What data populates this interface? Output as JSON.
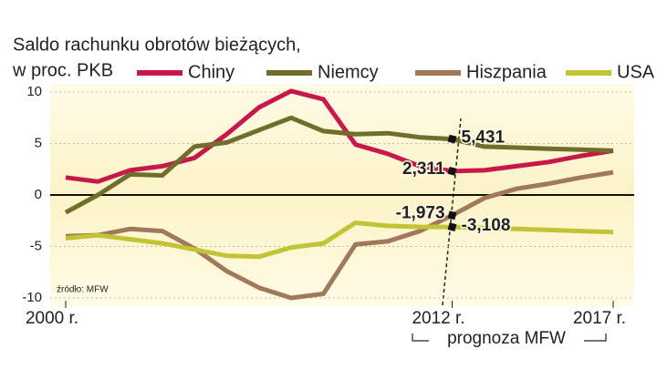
{
  "chart_data": {
    "type": "line",
    "title": [
      "Saldo rachunku obrotów bieżących,",
      "w proc. PKB"
    ],
    "source": "źródło: MFW",
    "annotation": "prognoza MFW",
    "x": [
      2000,
      2001,
      2002,
      2003,
      2004,
      2005,
      2006,
      2007,
      2008,
      2009,
      2010,
      2011,
      2012,
      2013,
      2014,
      2015,
      2016,
      2017
    ],
    "xlim": [
      2000,
      2017
    ],
    "xticks": [
      {
        "value": 2000,
        "label": "2000 r."
      },
      {
        "value": 2012,
        "label": "2012 r."
      },
      {
        "value": 2017,
        "label": "2017 r."
      }
    ],
    "ylim": [
      -10,
      10
    ],
    "yticks": [
      -10,
      -5,
      0,
      5,
      10
    ],
    "grid": true,
    "series": [
      {
        "name": "Chiny",
        "color": "#c8174a",
        "values": [
          1.7,
          1.3,
          2.4,
          2.8,
          3.6,
          5.9,
          8.5,
          10.1,
          9.3,
          4.9,
          4.0,
          2.8,
          2.311,
          2.4,
          2.8,
          3.2,
          3.8,
          4.3
        ],
        "value_labels": [
          null,
          null,
          null,
          null,
          null,
          null,
          null,
          null,
          null,
          null,
          null,
          null,
          "2,311",
          null,
          null,
          null,
          null,
          null
        ]
      },
      {
        "name": "Niemcy",
        "color": "#6f6e2a",
        "values": [
          -1.7,
          0.0,
          2.0,
          1.9,
          4.7,
          5.1,
          6.3,
          7.5,
          6.2,
          5.9,
          6.0,
          5.6,
          5.431,
          4.7,
          4.6,
          4.5,
          4.4,
          4.3
        ],
        "value_labels": [
          null,
          null,
          null,
          null,
          null,
          null,
          null,
          null,
          null,
          null,
          null,
          null,
          "5,431",
          null,
          null,
          null,
          null,
          null
        ]
      },
      {
        "name": "Hiszpania",
        "color": "#a0785a",
        "values": [
          -4.0,
          -3.9,
          -3.3,
          -3.5,
          -5.2,
          -7.4,
          -9.0,
          -10.0,
          -9.6,
          -4.8,
          -4.5,
          -3.5,
          -1.973,
          -0.3,
          0.6,
          1.1,
          1.7,
          2.2
        ],
        "value_labels": [
          null,
          null,
          null,
          null,
          null,
          null,
          null,
          null,
          null,
          null,
          null,
          null,
          "-1,973",
          null,
          null,
          null,
          null,
          null
        ]
      },
      {
        "name": "USA",
        "color": "#c3c336",
        "values": [
          -4.2,
          -3.9,
          -4.3,
          -4.7,
          -5.3,
          -5.9,
          -6.0,
          -5.1,
          -4.7,
          -2.7,
          -3.0,
          -3.1,
          -3.108,
          -3.2,
          -3.3,
          -3.4,
          -3.5,
          -3.6
        ],
        "value_labels": [
          null,
          null,
          null,
          null,
          null,
          null,
          null,
          null,
          null,
          null,
          null,
          null,
          "-3,108",
          null,
          null,
          null,
          null,
          null
        ]
      }
    ]
  }
}
